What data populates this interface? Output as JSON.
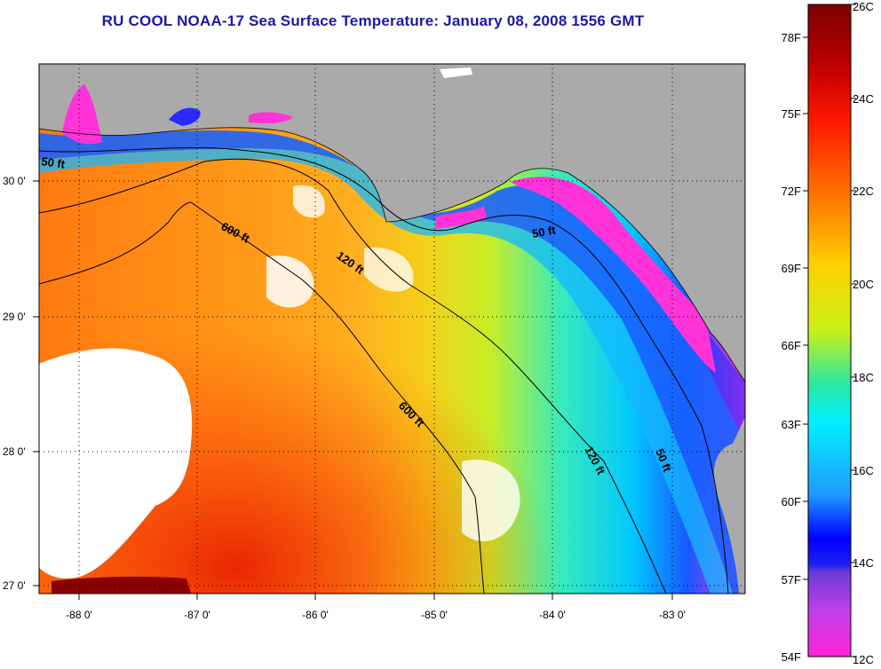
{
  "title": "RU COOL  NOAA-17  Sea Surface Temperature:  January 08, 2008 1556 GMT",
  "map": {
    "lon_labels": [
      "-88 0'",
      "-87 0'",
      "-86 0'",
      "-85 0'",
      "-84 0'",
      "-83 0'"
    ],
    "lat_labels": [
      "30 0'",
      "29 0'",
      "28 0'",
      "27 0'"
    ],
    "contour_labels": [
      "50 ft",
      "600 ft",
      "120 ft",
      "50 ft",
      "600 ft",
      "120 ft",
      "50 ft"
    ]
  },
  "colorbar": {
    "f_labels": [
      "78F",
      "75F",
      "72F",
      "69F",
      "66F",
      "63F",
      "60F",
      "57F",
      "54F"
    ],
    "c_labels": [
      "26C",
      "24C",
      "22C",
      "20C",
      "18C",
      "16C",
      "14C",
      "12C"
    ]
  }
}
